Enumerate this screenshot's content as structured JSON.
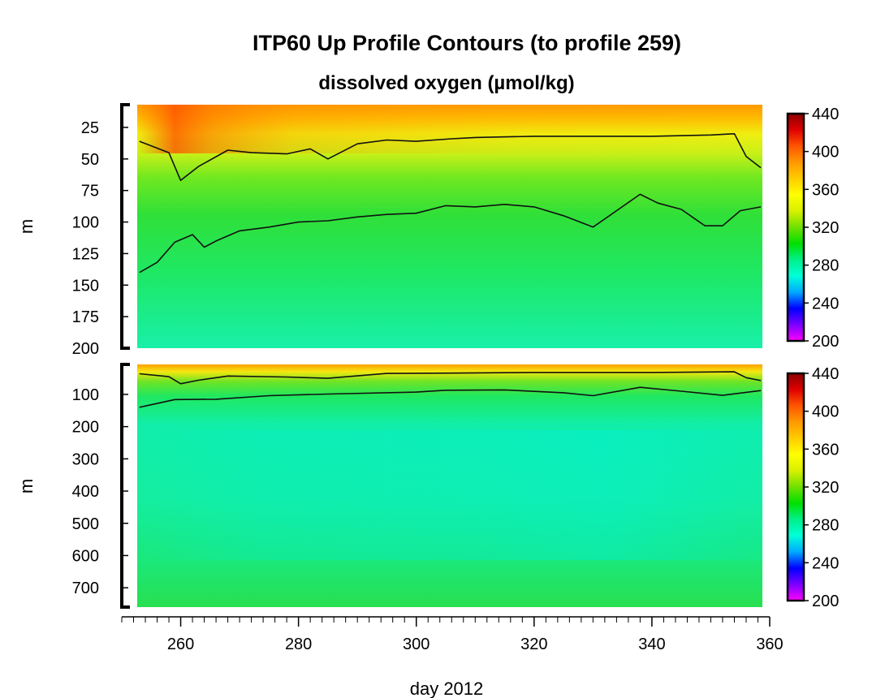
{
  "chart_data": [
    {
      "type": "heatmap",
      "panel": "upper",
      "title": "ITP60 Up Profile Contours (to profile 259)",
      "subtitle": "dissolved oxygen (µmol/kg)",
      "ylabel": "m",
      "y_ticks": [
        25,
        50,
        75,
        100,
        125,
        150,
        175,
        200
      ],
      "y_tick_labels": [
        "25",
        "50",
        "75",
        "100",
        "125",
        "150",
        "175",
        "200"
      ],
      "ylim": [
        7,
        200
      ],
      "y_reversed": true,
      "xlim": [
        250,
        360
      ],
      "data_x_range": [
        253,
        358.5
      ],
      "colorbar": {
        "ticks": [
          200,
          240,
          280,
          320,
          360,
          400,
          440
        ],
        "tick_labels": [
          "200",
          "240",
          "280",
          "320",
          "360",
          "400",
          "440"
        ],
        "range": [
          200,
          440
        ]
      },
      "contours": [
        {
          "level": 350,
          "depth_profile": [
            [
              253,
              36
            ],
            [
              258,
              45
            ],
            [
              260,
              67
            ],
            [
              263,
              56
            ],
            [
              268,
              43
            ],
            [
              272,
              45
            ],
            [
              278,
              46
            ],
            [
              282,
              42
            ],
            [
              285,
              50
            ],
            [
              290,
              38
            ],
            [
              295,
              35
            ],
            [
              300,
              36
            ],
            [
              306,
              34
            ],
            [
              310,
              33
            ],
            [
              320,
              32
            ],
            [
              330,
              32
            ],
            [
              340,
              32
            ],
            [
              350,
              31
            ],
            [
              354,
              30
            ],
            [
              356,
              48
            ],
            [
              358.5,
              57
            ]
          ]
        },
        {
          "level": 330,
          "depth_profile": [
            [
              253,
              140
            ],
            [
              256,
              132
            ],
            [
              259,
              116
            ],
            [
              262,
              110
            ],
            [
              264,
              120
            ],
            [
              266,
              115
            ],
            [
              270,
              107
            ],
            [
              275,
              104
            ],
            [
              280,
              100
            ],
            [
              285,
              99
            ],
            [
              290,
              96
            ],
            [
              295,
              94
            ],
            [
              300,
              93
            ],
            [
              305,
              87
            ],
            [
              310,
              88
            ],
            [
              315,
              86
            ],
            [
              320,
              88
            ],
            [
              325,
              95
            ],
            [
              330,
              104
            ],
            [
              334,
              91
            ],
            [
              338,
              78
            ],
            [
              341,
              85
            ],
            [
              345,
              90
            ],
            [
              349,
              103
            ],
            [
              352,
              103
            ],
            [
              355,
              91
            ],
            [
              358.5,
              88
            ]
          ]
        }
      ]
    },
    {
      "type": "heatmap",
      "panel": "lower",
      "ylabel": "m",
      "xlabel": "day 2012",
      "x_ticks": [
        260,
        280,
        300,
        320,
        340,
        360
      ],
      "x_tick_labels": [
        "260",
        "280",
        "300",
        "320",
        "340",
        "360"
      ],
      "y_ticks": [
        100,
        200,
        300,
        400,
        500,
        600,
        700
      ],
      "y_tick_labels": [
        "100",
        "200",
        "300",
        "400",
        "500",
        "600",
        "700"
      ],
      "ylim": [
        7,
        760
      ],
      "y_reversed": true,
      "xlim": [
        250,
        360
      ],
      "data_x_range": [
        253,
        358.5
      ],
      "colorbar": {
        "ticks": [
          200,
          240,
          280,
          320,
          360,
          400,
          440
        ],
        "tick_labels": [
          "200",
          "240",
          "280",
          "320",
          "360",
          "400",
          "440"
        ],
        "range": [
          200,
          440
        ]
      },
      "contours": [
        {
          "level": 350,
          "depth_profile": [
            [
              253,
              36
            ],
            [
              258,
              45
            ],
            [
              260,
              67
            ],
            [
              263,
              56
            ],
            [
              268,
              43
            ],
            [
              278,
              46
            ],
            [
              285,
              50
            ],
            [
              295,
              35
            ],
            [
              306,
              34
            ],
            [
              320,
              32
            ],
            [
              340,
              32
            ],
            [
              354,
              30
            ],
            [
              356,
              48
            ],
            [
              358.5,
              57
            ]
          ]
        },
        {
          "level": 330,
          "depth_profile": [
            [
              253,
              140
            ],
            [
              259,
              116
            ],
            [
              266,
              115
            ],
            [
              275,
              104
            ],
            [
              285,
              99
            ],
            [
              300,
              93
            ],
            [
              305,
              87
            ],
            [
              315,
              86
            ],
            [
              325,
              95
            ],
            [
              330,
              104
            ],
            [
              338,
              78
            ],
            [
              345,
              90
            ],
            [
              352,
              103
            ],
            [
              358.5,
              88
            ]
          ]
        }
      ]
    }
  ],
  "colormap": [
    "#ff00ff",
    "#7b00ff",
    "#0000ff",
    "#00aaff",
    "#00ffd8",
    "#00f08a",
    "#00e000",
    "#70e000",
    "#d8f000",
    "#ffff00",
    "#ffcc00",
    "#ff9900",
    "#ff5500",
    "#e00000",
    "#8b0000"
  ]
}
